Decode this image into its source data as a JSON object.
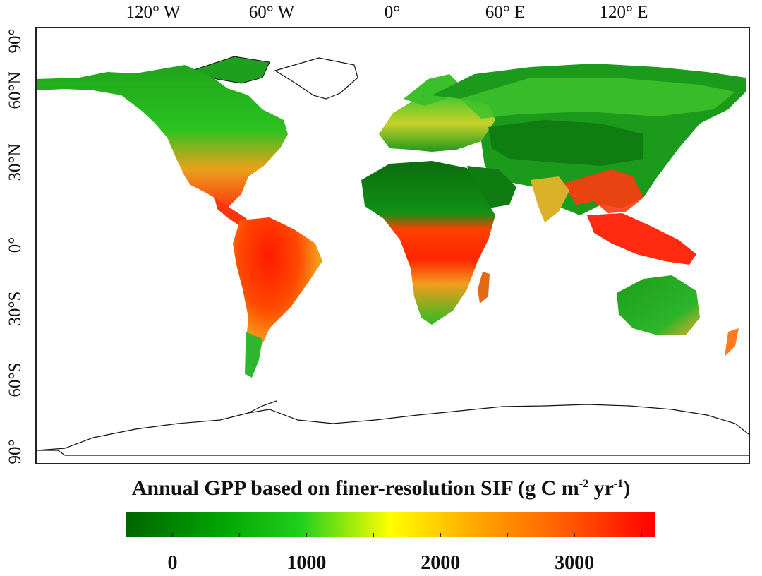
{
  "map": {
    "lon_labels": [
      "120° W",
      "60° W",
      "0°",
      "60° E",
      "120° E"
    ],
    "lat_labels": [
      "90°",
      "60°N",
      "30°N",
      "0°",
      "30°S",
      "60°S",
      "90°"
    ]
  },
  "legend": {
    "title_prefix": "Annual GPP based on finer-resolution SIF (g C m",
    "title_exp1": "-2",
    "title_mid": " yr",
    "title_exp2": "-1",
    "title_suffix": ")",
    "ticks": [
      "0",
      "1000",
      "2000",
      "3000"
    ],
    "range": [
      -350,
      3600
    ],
    "tick_values": [
      0,
      1000,
      2000,
      3000
    ],
    "colors": [
      "#006400",
      "#00a000",
      "#22d11b",
      "#ffff00",
      "#ffa500",
      "#ff5a00",
      "#ff0000"
    ]
  }
}
